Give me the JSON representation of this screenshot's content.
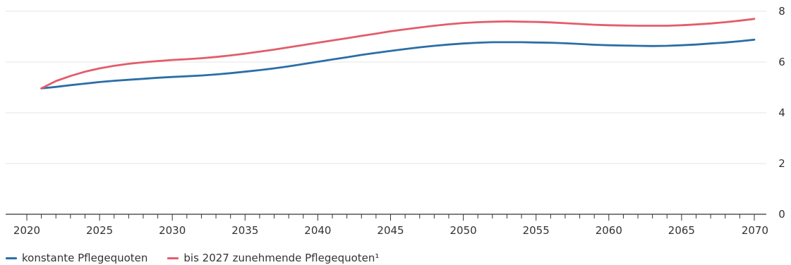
{
  "chart_data": {
    "type": "line",
    "title": "",
    "xlabel": "",
    "ylabel": "",
    "xlim": [
      2020,
      2070
    ],
    "ylim": [
      0,
      8
    ],
    "grid": true,
    "legend_position": "bottom-left",
    "x_ticks_labeled": [
      2020,
      2025,
      2030,
      2035,
      2040,
      2045,
      2050,
      2055,
      2060,
      2065,
      2070
    ],
    "y_ticks": [
      0,
      2,
      4,
      6,
      8
    ],
    "x": [
      2021,
      2022,
      2023,
      2024,
      2025,
      2026,
      2027,
      2028,
      2029,
      2030,
      2031,
      2032,
      2033,
      2034,
      2035,
      2036,
      2037,
      2038,
      2039,
      2040,
      2041,
      2042,
      2043,
      2044,
      2045,
      2046,
      2047,
      2048,
      2049,
      2050,
      2051,
      2052,
      2053,
      2054,
      2055,
      2056,
      2057,
      2058,
      2059,
      2060,
      2061,
      2062,
      2063,
      2064,
      2065,
      2066,
      2067,
      2068,
      2069,
      2070
    ],
    "series": [
      {
        "name": "konstante Pflegequoten",
        "color": "#2b6ea8",
        "values": [
          4.96,
          5.02,
          5.09,
          5.15,
          5.21,
          5.26,
          5.3,
          5.34,
          5.38,
          5.41,
          5.44,
          5.47,
          5.51,
          5.56,
          5.62,
          5.68,
          5.75,
          5.83,
          5.92,
          6.01,
          6.1,
          6.19,
          6.28,
          6.36,
          6.44,
          6.51,
          6.58,
          6.64,
          6.69,
          6.73,
          6.76,
          6.78,
          6.78,
          6.78,
          6.77,
          6.76,
          6.74,
          6.71,
          6.68,
          6.66,
          6.65,
          6.64,
          6.63,
          6.64,
          6.66,
          6.69,
          6.73,
          6.77,
          6.82,
          6.88
        ]
      },
      {
        "name": "bis 2027 zunehmende Pflegequoten¹",
        "color": "#e35d6a",
        "values": [
          4.96,
          5.25,
          5.45,
          5.62,
          5.75,
          5.85,
          5.93,
          5.99,
          6.04,
          6.08,
          6.11,
          6.15,
          6.2,
          6.26,
          6.33,
          6.41,
          6.49,
          6.58,
          6.67,
          6.76,
          6.85,
          6.94,
          7.03,
          7.12,
          7.21,
          7.29,
          7.36,
          7.43,
          7.49,
          7.54,
          7.57,
          7.59,
          7.6,
          7.59,
          7.58,
          7.56,
          7.53,
          7.5,
          7.47,
          7.45,
          7.44,
          7.43,
          7.43,
          7.43,
          7.45,
          7.48,
          7.52,
          7.57,
          7.63,
          7.7
        ]
      }
    ]
  }
}
